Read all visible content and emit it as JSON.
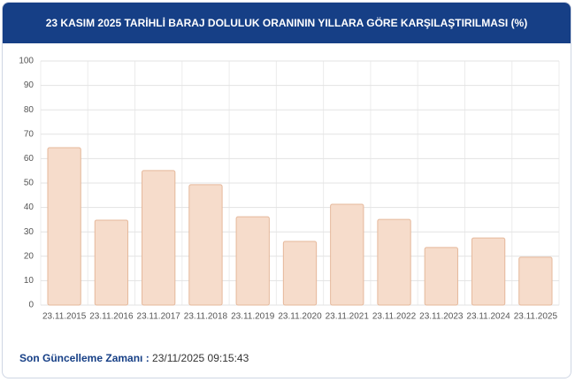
{
  "chart_data": {
    "type": "bar",
    "title": "23 KASIM 2025 TARİHLİ BARAJ DOLULUK ORANININ YILLARA GÖRE KARŞILAŞTIRILMASI (%)",
    "categories": [
      "23.11.2015",
      "23.11.2016",
      "23.11.2017",
      "23.11.2018",
      "23.11.2019",
      "23.11.2020",
      "23.11.2021",
      "23.11.2022",
      "23.11.2023",
      "23.11.2024",
      "23.11.2025"
    ],
    "values": [
      64.5,
      34.8,
      55.1,
      49.3,
      36.2,
      26.1,
      41.3,
      35.1,
      23.6,
      27.5,
      19.6
    ],
    "color": "#f6dccb",
    "ylim": [
      0,
      100
    ],
    "yticks": [
      0,
      10,
      20,
      30,
      40,
      50,
      60,
      70,
      80,
      90,
      100
    ],
    "grid": true
  },
  "footer": {
    "label": "Son Güncelleme Zamanı :",
    "value": "23/11/2025 09:15:43"
  }
}
